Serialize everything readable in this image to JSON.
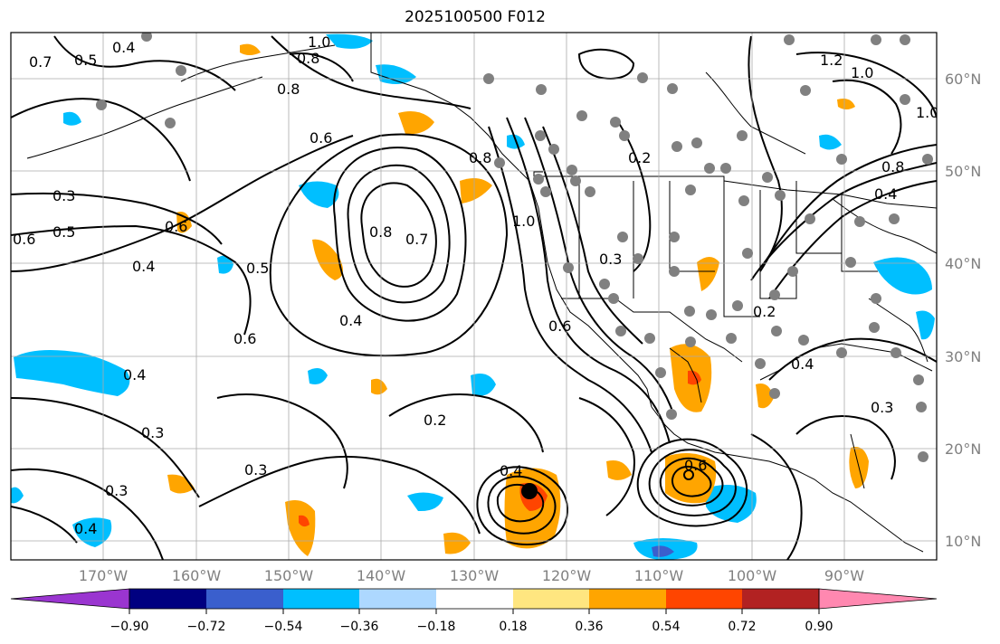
{
  "title": "2025100500 F012",
  "map": {
    "contour_labels": [
      "1.0",
      "0.8",
      "0.4",
      "0.5",
      "0.7",
      "0.8",
      "0.6",
      "0.3",
      "0.5",
      "0.6",
      "0.4",
      "0.6",
      "0.5",
      "0.4",
      "0.6",
      "0.8",
      "0.7",
      "0.4",
      "0.4",
      "0.3",
      "0.3",
      "0.2",
      "0.3",
      "0.4",
      "0.6",
      "0.8",
      "1.0",
      "0.3",
      "0.2",
      "1.2",
      "1.0",
      "0.8",
      "1.0",
      "0.2",
      "0.4",
      "0.3",
      "0.6",
      "0.4"
    ],
    "lat_labels": [
      "60°N",
      "50°N",
      "40°N",
      "30°N",
      "20°N",
      "10°N"
    ],
    "lon_labels": [
      "170°W",
      "160°W",
      "150°W",
      "140°W",
      "130°W",
      "120°W",
      "110°W",
      "100°W",
      "90°W"
    ]
  },
  "colorbar": {
    "tick_labels": [
      "−0.90",
      "−0.72",
      "−0.54",
      "−0.36",
      "−0.18",
      "0.18",
      "0.36",
      "0.54",
      "0.72",
      "0.90"
    ],
    "colors": [
      "#9a35d0",
      "#000080",
      "#3a5fcd",
      "#00bfff",
      "#add8ff",
      "#ffffff",
      "#ffe680",
      "#ffa500",
      "#ff4500",
      "#b22222",
      "#ff88b0"
    ]
  },
  "colors": {
    "land_outline": "#000000",
    "station_dot": "#808080",
    "grid": "#aaaaaa"
  }
}
